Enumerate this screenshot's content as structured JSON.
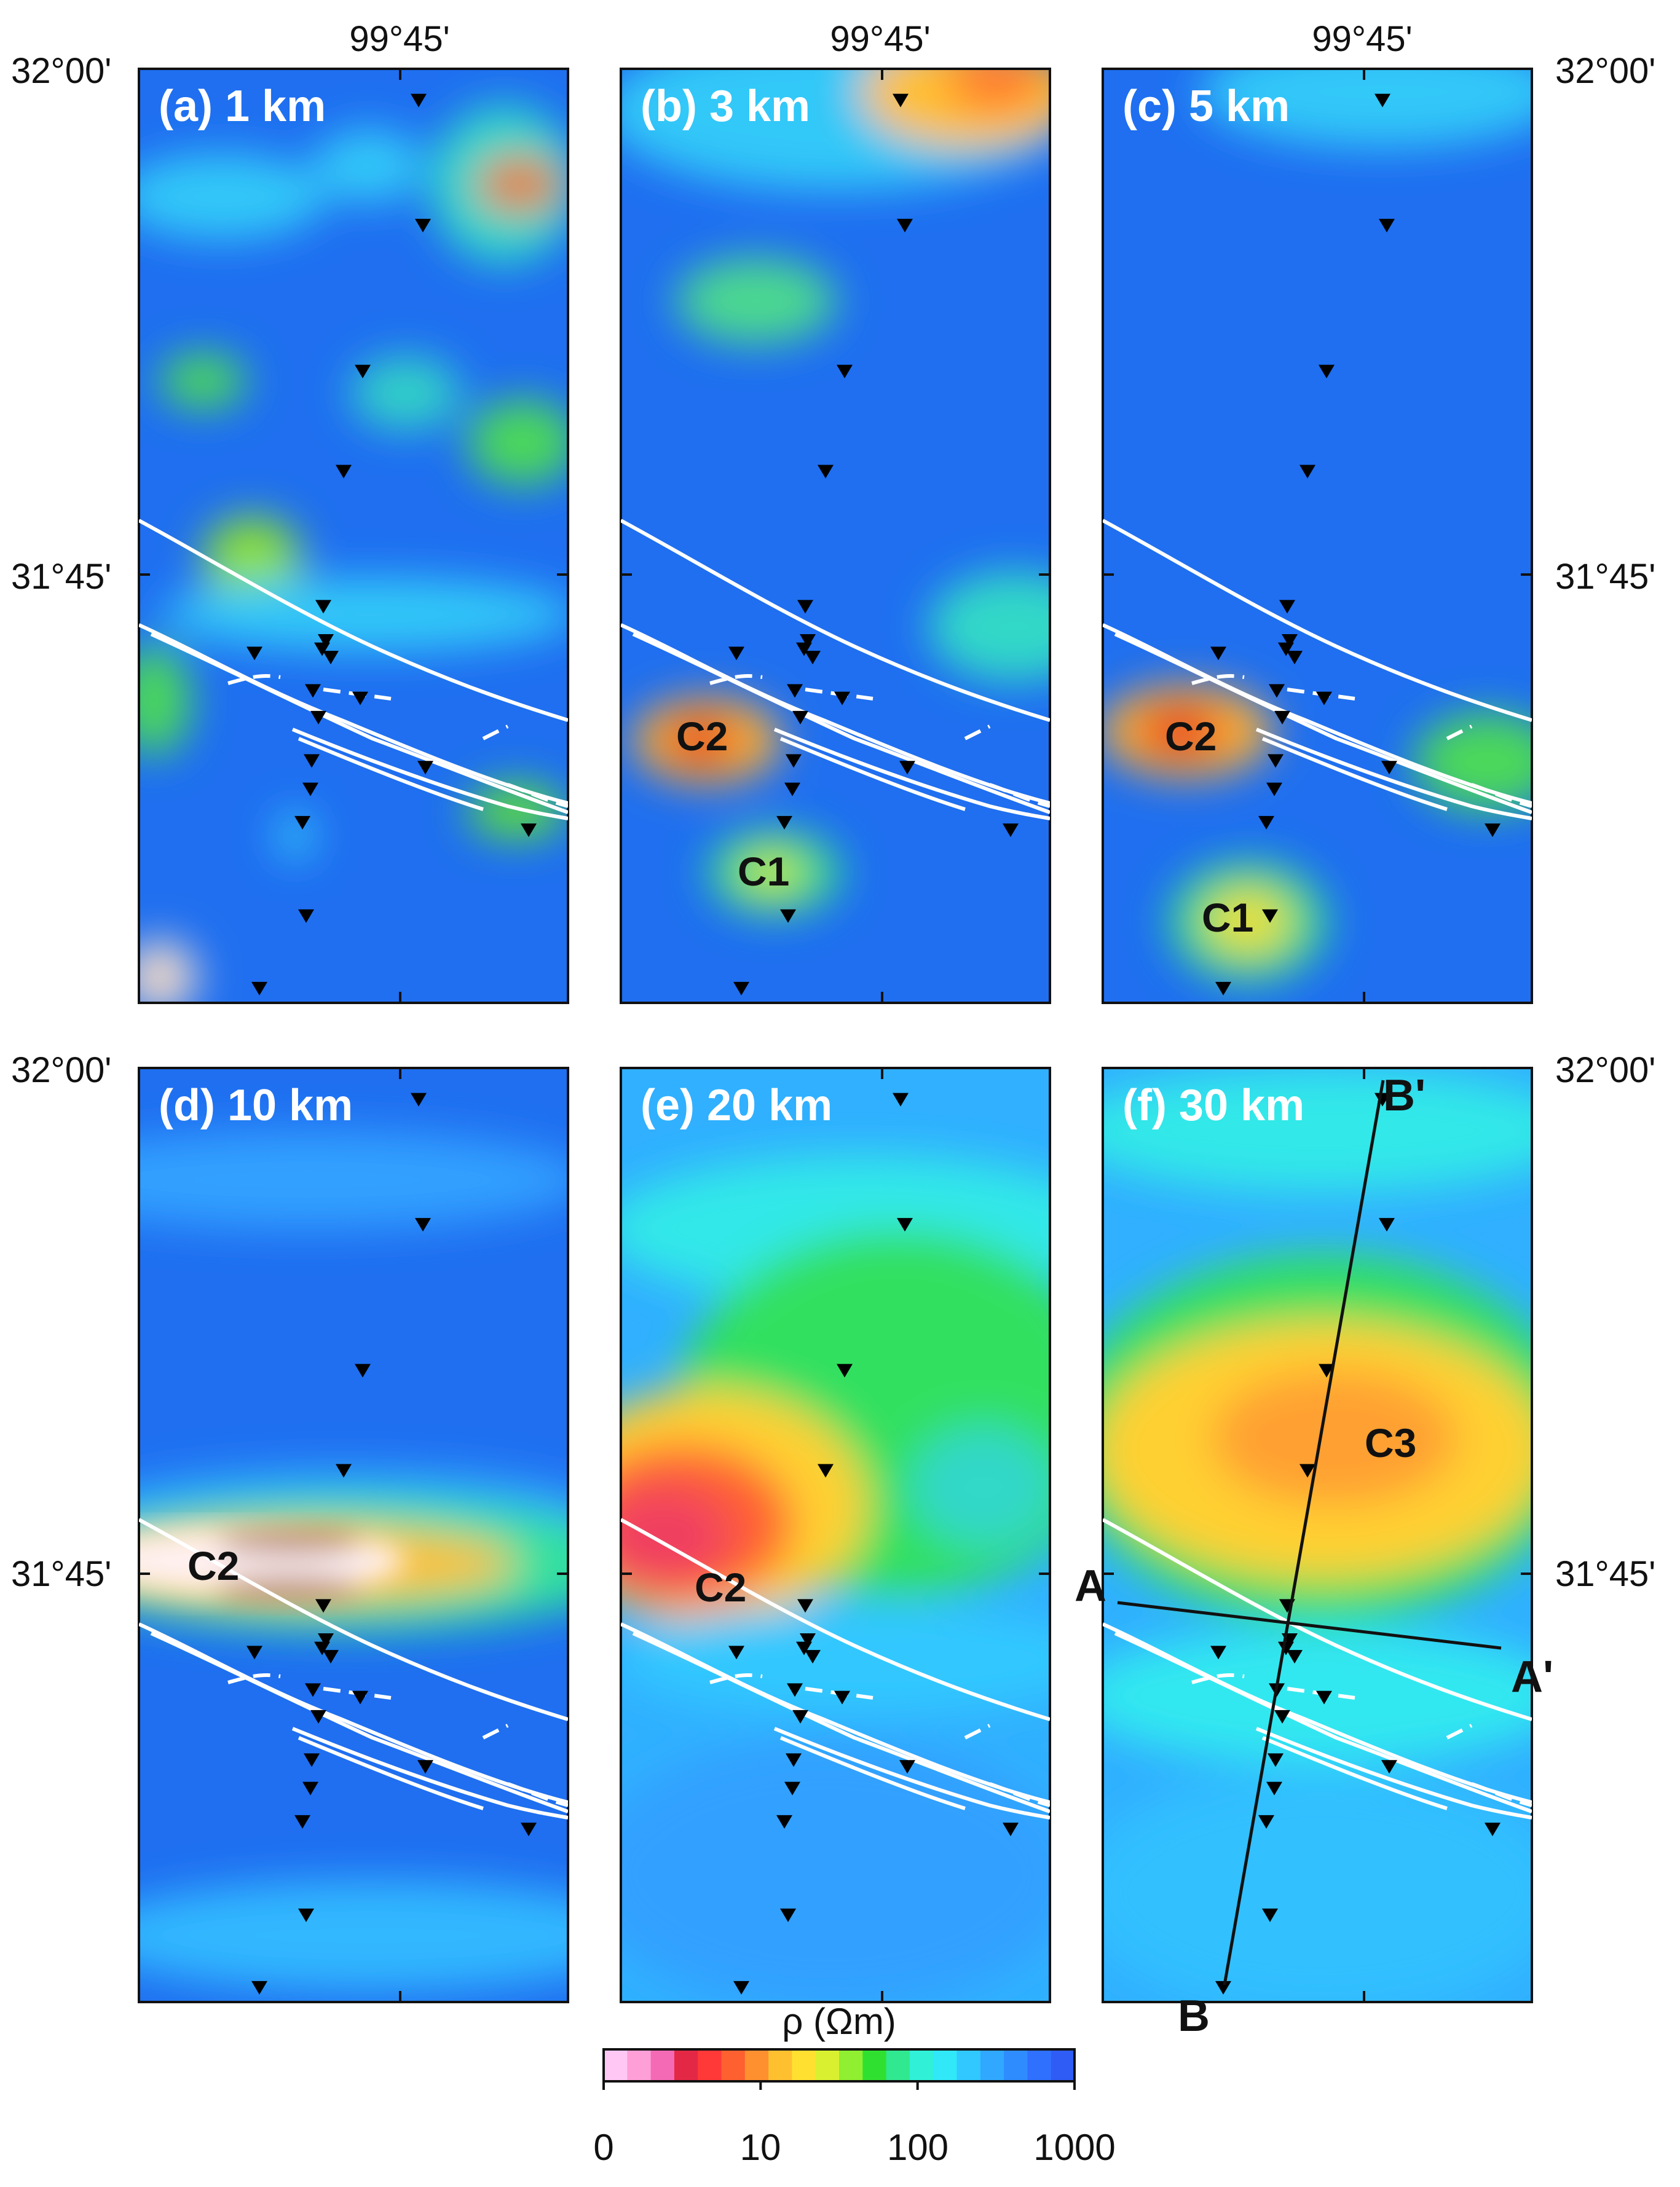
{
  "longitude_label": "99°45'",
  "latitude_labels": {
    "top": "32°00'",
    "mid": "31°45'"
  },
  "panels": [
    {
      "label": "(a) 1 km",
      "anomalies": []
    },
    {
      "label": "(b) 3 km",
      "anomalies": [
        "C2",
        "C1"
      ]
    },
    {
      "label": "(c) 5 km",
      "anomalies": [
        "C2",
        "C1"
      ]
    },
    {
      "label": "(d) 10 km",
      "anomalies": [
        "C2"
      ]
    },
    {
      "label": "(e) 20 km",
      "anomalies": [
        "C2"
      ]
    },
    {
      "label": "(f) 30 km",
      "anomalies": [
        "C3"
      ]
    }
  ],
  "profiles": {
    "a_start": "A",
    "a_end": "A'",
    "b_start": "B",
    "b_end": "B'"
  },
  "colorbar": {
    "title": "ρ (Ωm)",
    "ticks": [
      "0",
      "10",
      "100",
      "1000"
    ],
    "colors": [
      "#ffc8f4",
      "#ff9fd8",
      "#f56ab4",
      "#e32845",
      "#ff3838",
      "#ff6030",
      "#ff9030",
      "#ffc030",
      "#ffe030",
      "#d8f030",
      "#8fef30",
      "#30e030",
      "#30e890",
      "#30f0d8",
      "#30e8f8",
      "#30c8ff",
      "#30a8ff",
      "#2f8cff",
      "#2f70ff",
      "#2f5cf5"
    ]
  },
  "marker_color": "#000000",
  "fault_color": "#ffffff",
  "background_color": "#1f6ff0"
}
